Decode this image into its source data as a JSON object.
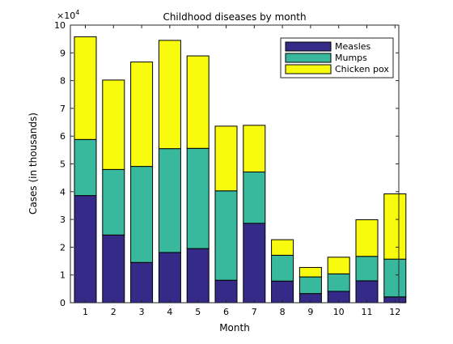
{
  "chart_data": {
    "type": "bar",
    "stacked": true,
    "title": "Childhood diseases by month",
    "xlabel": "Month",
    "ylabel": "Cases (in thousands)",
    "y_exponent_label": "×10",
    "y_exponent_power": "4",
    "ylim": [
      0,
      100000
    ],
    "y_ticks": [
      0,
      10000,
      20000,
      30000,
      40000,
      50000,
      60000,
      70000,
      80000,
      90000,
      100000
    ],
    "y_tick_labels": [
      "0",
      "1",
      "2",
      "3",
      "4",
      "5",
      "6",
      "7",
      "8",
      "9",
      "10"
    ],
    "categories": [
      "1",
      "2",
      "3",
      "4",
      "5",
      "6",
      "7",
      "8",
      "9",
      "10",
      "11",
      "12"
    ],
    "grid": false,
    "legend_position": "top-right",
    "series": [
      {
        "name": "Measles",
        "color": "#352a87",
        "values": [
          38600,
          24400,
          14500,
          18100,
          19500,
          8100,
          28600,
          7800,
          3300,
          4100,
          7900,
          2100
        ]
      },
      {
        "name": "Mumps",
        "color": "#38b99e",
        "values": [
          20200,
          23600,
          34600,
          37400,
          36100,
          32200,
          18500,
          9300,
          6000,
          6300,
          8800,
          13600
        ]
      },
      {
        "name": "Chicken pox",
        "color": "#f9fb0e",
        "values": [
          37000,
          32200,
          37600,
          39000,
          33300,
          23300,
          16800,
          5600,
          3400,
          6000,
          13200,
          23500
        ]
      }
    ]
  }
}
